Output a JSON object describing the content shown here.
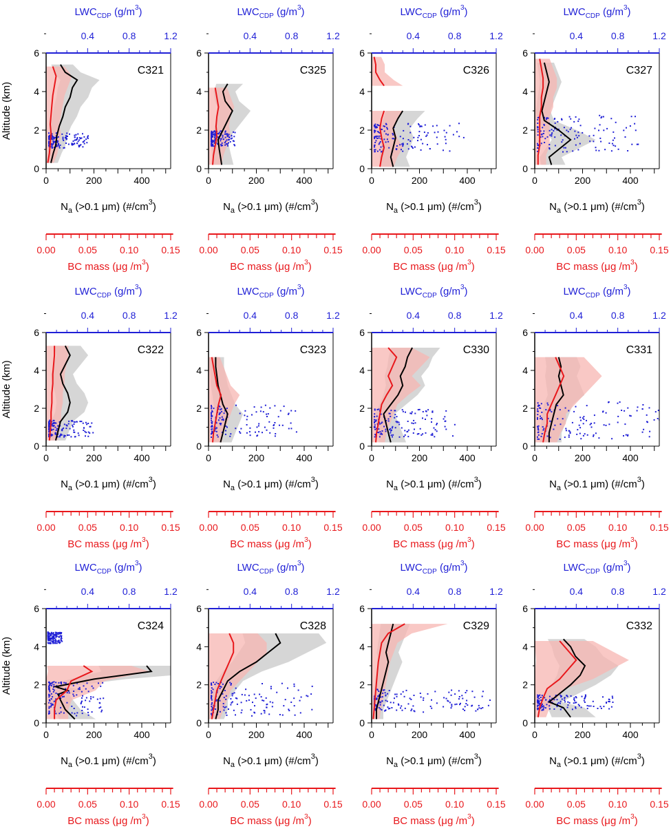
{
  "figure": {
    "y_axis_title": "Altitude (km)",
    "x_axis_title": {
      "main": "N",
      "sub": "a",
      "rest": " (>0.1 μm) (#/cm",
      "sup": "3",
      "close": ")"
    },
    "top_axis_title": {
      "main": "LWC",
      "sub": "CDP",
      "rest": " (g/m",
      "sup": "3",
      "close": ")"
    },
    "bc_axis_title": {
      "main": "BC mass (μg /m",
      "sup": "3",
      "close": ")"
    },
    "y_ticks": [
      "0",
      "2",
      "4",
      "6"
    ],
    "x_ticks": [
      "0",
      "200",
      "400"
    ],
    "top_ticks": [
      "0.4",
      "0.8",
      "1.2"
    ],
    "bc_ticks": [
      "0.00",
      "0.05",
      "0.10",
      "0.15"
    ],
    "colors": {
      "na": "#000000",
      "na_band": "#c8c8c8",
      "bc": "#e8171b",
      "bc_band": "#f7b6b2",
      "lwc": "#1f1fd6",
      "axis": "#000000"
    }
  },
  "chart_data": [
    {
      "type": "line",
      "panel": "C321",
      "ylabel": "Altitude (km)",
      "xlabel": "Na (>0.1 µm) (#/cm3)",
      "ylim": [
        0,
        6
      ],
      "xlim": [
        0,
        500
      ],
      "x2lim": [
        0,
        1.2
      ],
      "bclim": [
        0,
        0.15
      ],
      "series": [
        {
          "name": "Na",
          "altitude": [
            0.3,
            0.8,
            1.2,
            1.7,
            2.2,
            2.7,
            3.2,
            3.7,
            4.2,
            4.6,
            5.0,
            5.4
          ],
          "values": [
            20,
            30,
            40,
            45,
            55,
            70,
            80,
            100,
            110,
            130,
            80,
            60
          ]
        },
        {
          "name": "BC mass",
          "altitude": [
            0.3,
            0.8,
            1.3,
            1.8,
            2.3,
            2.8,
            3.3,
            3.8,
            4.3,
            4.8,
            5.3
          ],
          "values": [
            0.002,
            0.004,
            0.005,
            0.006,
            0.005,
            0.006,
            0.007,
            0.008,
            0.01,
            0.012,
            0.008
          ]
        },
        {
          "name": "LWC",
          "altitude_range": [
            1.1,
            1.9
          ],
          "values": [
            0.02,
            0.4
          ]
        }
      ]
    },
    {
      "type": "line",
      "panel": "C325",
      "ylim": [
        0,
        6
      ],
      "xlim": [
        0,
        500
      ],
      "series": [
        {
          "name": "Na",
          "altitude": [
            0.2,
            0.6,
            1.0,
            1.5,
            2.0,
            2.5,
            3.0,
            3.5,
            4.0,
            4.4
          ],
          "values": [
            55,
            50,
            45,
            40,
            60,
            80,
            100,
            70,
            60,
            80
          ]
        },
        {
          "name": "BC mass",
          "altitude": [
            0.2,
            0.7,
            1.2,
            1.7,
            2.2,
            2.7,
            3.2,
            3.7,
            4.2
          ],
          "values": [
            0.005,
            0.006,
            0.008,
            0.01,
            0.009,
            0.01,
            0.012,
            0.01,
            0.008
          ]
        },
        {
          "name": "LWC",
          "altitude_range": [
            1.2,
            2.0
          ],
          "values": [
            0.02,
            0.25
          ]
        }
      ]
    },
    {
      "type": "line",
      "panel": "C326",
      "ylim": [
        0,
        6
      ],
      "xlim": [
        0,
        500
      ],
      "series": [
        {
          "name": "Na",
          "altitude": [
            0.1,
            0.6,
            1.1,
            1.6,
            2.1,
            2.6,
            3.0
          ],
          "values": [
            90,
            80,
            90,
            100,
            90,
            110,
            130
          ]
        },
        {
          "name": "BC mass",
          "altitude": [
            0.1,
            0.6,
            1.1,
            1.6,
            2.1,
            2.6,
            3.0
          ],
          "values": [
            0.01,
            0.012,
            0.015,
            0.012,
            0.01,
            0.012,
            0.015
          ]
        },
        {
          "name": "BC mass upper",
          "altitude": [
            4.3,
            4.6,
            5.0,
            5.4,
            5.8
          ],
          "values": [
            0.015,
            0.01,
            0.005,
            0.005,
            0.003
          ]
        },
        {
          "name": "LWC",
          "altitude_range": [
            0.9,
            2.4
          ],
          "values": [
            0.02,
            0.9
          ]
        }
      ]
    },
    {
      "type": "line",
      "panel": "C327",
      "ylim": [
        0,
        6
      ],
      "xlim": [
        0,
        500
      ],
      "series": [
        {
          "name": "Na",
          "altitude": [
            0.2,
            0.6,
            1.0,
            1.5,
            2.0,
            2.5,
            3.0,
            3.5,
            4.0,
            4.5,
            5.0,
            5.5
          ],
          "values": [
            70,
            60,
            100,
            150,
            100,
            40,
            30,
            40,
            50,
            60,
            50,
            40
          ]
        },
        {
          "name": "BC mass",
          "altitude": [
            0.2,
            0.7,
            1.2,
            1.7,
            2.2,
            2.7,
            3.2,
            3.7,
            4.2,
            4.7,
            5.2,
            5.7
          ],
          "values": [
            0.004,
            0.004,
            0.006,
            0.006,
            0.006,
            0.006,
            0.008,
            0.008,
            0.01,
            0.01,
            0.008,
            0.006
          ]
        },
        {
          "name": "LWC",
          "altitude_range": [
            0.9,
            2.8
          ],
          "values": [
            0.02,
            1.05
          ]
        }
      ]
    },
    {
      "type": "line",
      "panel": "C322",
      "ylim": [
        0,
        6
      ],
      "xlim": [
        0,
        500
      ],
      "series": [
        {
          "name": "Na",
          "altitude": [
            0.3,
            0.8,
            1.3,
            1.8,
            2.3,
            2.8,
            3.3,
            3.8,
            4.3,
            4.8,
            5.3
          ],
          "values": [
            40,
            50,
            60,
            90,
            100,
            90,
            70,
            60,
            80,
            100,
            80
          ]
        },
        {
          "name": "BC mass",
          "altitude": [
            0.3,
            0.8,
            1.3,
            1.8,
            2.3,
            2.8,
            3.3,
            3.8,
            4.3,
            4.8,
            5.3
          ],
          "values": [
            0.004,
            0.005,
            0.006,
            0.006,
            0.007,
            0.007,
            0.008,
            0.008,
            0.009,
            0.01,
            0.01
          ]
        },
        {
          "name": "LWC",
          "altitude_range": [
            0.5,
            1.4
          ],
          "values": [
            0.02,
            0.45
          ]
        }
      ]
    },
    {
      "type": "line",
      "panel": "C323",
      "ylim": [
        0,
        6
      ],
      "xlim": [
        0,
        500
      ],
      "series": [
        {
          "name": "Na",
          "altitude": [
            0.2,
            0.7,
            1.2,
            1.7,
            2.2,
            2.7,
            3.2,
            3.7,
            4.2,
            4.7
          ],
          "values": [
            50,
            60,
            70,
            80,
            60,
            50,
            40,
            35,
            30,
            30
          ]
        },
        {
          "name": "BC mass",
          "altitude": [
            0.2,
            0.7,
            1.2,
            1.7,
            2.2,
            2.7,
            3.2,
            3.7,
            4.2,
            4.7
          ],
          "values": [
            0.005,
            0.006,
            0.008,
            0.01,
            0.012,
            0.015,
            0.01,
            0.008,
            0.006,
            0.004
          ]
        },
        {
          "name": "LWC",
          "altitude_range": [
            0.5,
            2.2
          ],
          "values": [
            0.02,
            0.85
          ]
        }
      ]
    },
    {
      "type": "line",
      "panel": "C330",
      "ylim": [
        0,
        6
      ],
      "xlim": [
        0,
        500
      ],
      "series": [
        {
          "name": "Na",
          "altitude": [
            0.2,
            0.7,
            1.2,
            1.7,
            2.2,
            2.7,
            3.2,
            3.7,
            4.2,
            4.7,
            5.2
          ],
          "values": [
            80,
            70,
            60,
            50,
            80,
            110,
            130,
            120,
            140,
            150,
            170
          ]
        },
        {
          "name": "BC mass",
          "altitude": [
            0.2,
            0.7,
            1.2,
            1.7,
            2.2,
            2.7,
            3.2,
            3.7,
            4.2,
            4.7,
            5.2
          ],
          "values": [
            0.005,
            0.006,
            0.008,
            0.01,
            0.012,
            0.018,
            0.025,
            0.02,
            0.025,
            0.03,
            0.02
          ]
        },
        {
          "name": "LWC",
          "altitude_range": [
            0.5,
            2.0
          ],
          "values": [
            0.02,
            0.8
          ]
        }
      ]
    },
    {
      "type": "line",
      "panel": "C331",
      "ylim": [
        0,
        6
      ],
      "xlim": [
        0,
        500
      ],
      "series": [
        {
          "name": "Na",
          "altitude": [
            0.2,
            0.7,
            1.2,
            1.7,
            2.2,
            2.7,
            3.2,
            3.7,
            4.2,
            4.7
          ],
          "values": [
            60,
            60,
            70,
            80,
            90,
            120,
            110,
            100,
            110,
            100
          ]
        },
        {
          "name": "BC mass",
          "altitude": [
            0.2,
            0.7,
            1.2,
            1.7,
            2.2,
            2.7,
            3.2,
            3.7,
            4.2,
            4.7
          ],
          "values": [
            0.01,
            0.012,
            0.015,
            0.015,
            0.02,
            0.025,
            0.03,
            0.035,
            0.03,
            0.025
          ]
        },
        {
          "name": "LWC",
          "altitude_range": [
            0.4,
            2.4
          ],
          "values": [
            0.02,
            1.2
          ]
        }
      ]
    },
    {
      "type": "line",
      "panel": "C324",
      "ylim": [
        0,
        6
      ],
      "xlim": [
        0,
        500
      ],
      "series": [
        {
          "name": "Na",
          "altitude": [
            0.2,
            0.7,
            1.2,
            1.5,
            1.7,
            1.9,
            2.3,
            2.7,
            3.0
          ],
          "values": [
            120,
            80,
            60,
            50,
            90,
            40,
            200,
            440,
            420
          ]
        },
        {
          "name": "BC mass",
          "altitude": [
            0.2,
            0.7,
            1.2,
            1.7,
            2.2,
            2.7,
            3.0
          ],
          "values": [
            0.01,
            0.01,
            0.012,
            0.025,
            0.03,
            0.055,
            0.045
          ]
        },
        {
          "name": "LWC",
          "altitude_range": [
            0.4,
            2.2
          ],
          "values": [
            0.02,
            0.55
          ]
        },
        {
          "name": "LWC upper",
          "altitude_range": [
            4.2,
            4.8
          ],
          "values": [
            0.01,
            0.15
          ]
        }
      ]
    },
    {
      "type": "line",
      "panel": "C328",
      "ylim": [
        0,
        6
      ],
      "xlim": [
        0,
        500
      ],
      "series": [
        {
          "name": "Na",
          "altitude": [
            0.2,
            0.7,
            1.2,
            1.7,
            2.2,
            2.7,
            3.2,
            3.7,
            4.2,
            4.7
          ],
          "values": [
            30,
            40,
            40,
            60,
            80,
            130,
            200,
            250,
            300,
            280
          ]
        },
        {
          "name": "BC mass",
          "altitude": [
            0.2,
            0.7,
            1.2,
            1.7,
            2.2,
            2.7,
            3.2,
            3.7,
            4.2,
            4.7
          ],
          "values": [
            0.004,
            0.006,
            0.008,
            0.01,
            0.015,
            0.02,
            0.025,
            0.03,
            0.03,
            0.025
          ]
        },
        {
          "name": "LWC",
          "altitude_range": [
            0.4,
            2.2
          ],
          "values": [
            0.02,
            1.0
          ]
        }
      ]
    },
    {
      "type": "line",
      "panel": "C329",
      "ylim": [
        0,
        6
      ],
      "xlim": [
        0,
        500
      ],
      "series": [
        {
          "name": "Na",
          "altitude": [
            0.2,
            0.7,
            1.2,
            1.7,
            2.2,
            2.7,
            3.2,
            3.7,
            4.2,
            4.7,
            5.2
          ],
          "values": [
            20,
            20,
            30,
            40,
            50,
            60,
            70,
            60,
            70,
            80,
            90
          ]
        },
        {
          "name": "BC mass",
          "altitude": [
            0.2,
            0.7,
            1.2,
            1.7,
            2.2,
            2.7,
            3.2,
            3.7,
            4.2,
            4.7,
            5.2
          ],
          "values": [
            0.002,
            0.003,
            0.004,
            0.005,
            0.006,
            0.007,
            0.008,
            0.01,
            0.012,
            0.02,
            0.04
          ]
        },
        {
          "name": "LWC",
          "altitude_range": [
            0.6,
            1.8
          ],
          "values": [
            0.02,
            1.15
          ]
        }
      ]
    },
    {
      "type": "line",
      "panel": "C332",
      "ylim": [
        0,
        6
      ],
      "xlim": [
        0,
        500
      ],
      "series": [
        {
          "name": "Na",
          "altitude": [
            0.3,
            0.8,
            1.1,
            1.5,
            2.0,
            2.5,
            3.0,
            3.5,
            4.0,
            4.4
          ],
          "values": [
            150,
            120,
            60,
            100,
            150,
            190,
            210,
            170,
            150,
            120
          ]
        },
        {
          "name": "BC mass",
          "altitude": [
            0.3,
            0.8,
            1.3,
            1.8,
            2.3,
            2.8,
            3.3,
            3.8,
            4.3
          ],
          "values": [
            0.004,
            0.006,
            0.01,
            0.015,
            0.03,
            0.04,
            0.05,
            0.04,
            0.03
          ]
        },
        {
          "name": "LWC",
          "altitude_range": [
            0.7,
            1.5
          ],
          "values": [
            0.02,
            0.75
          ]
        }
      ]
    }
  ]
}
